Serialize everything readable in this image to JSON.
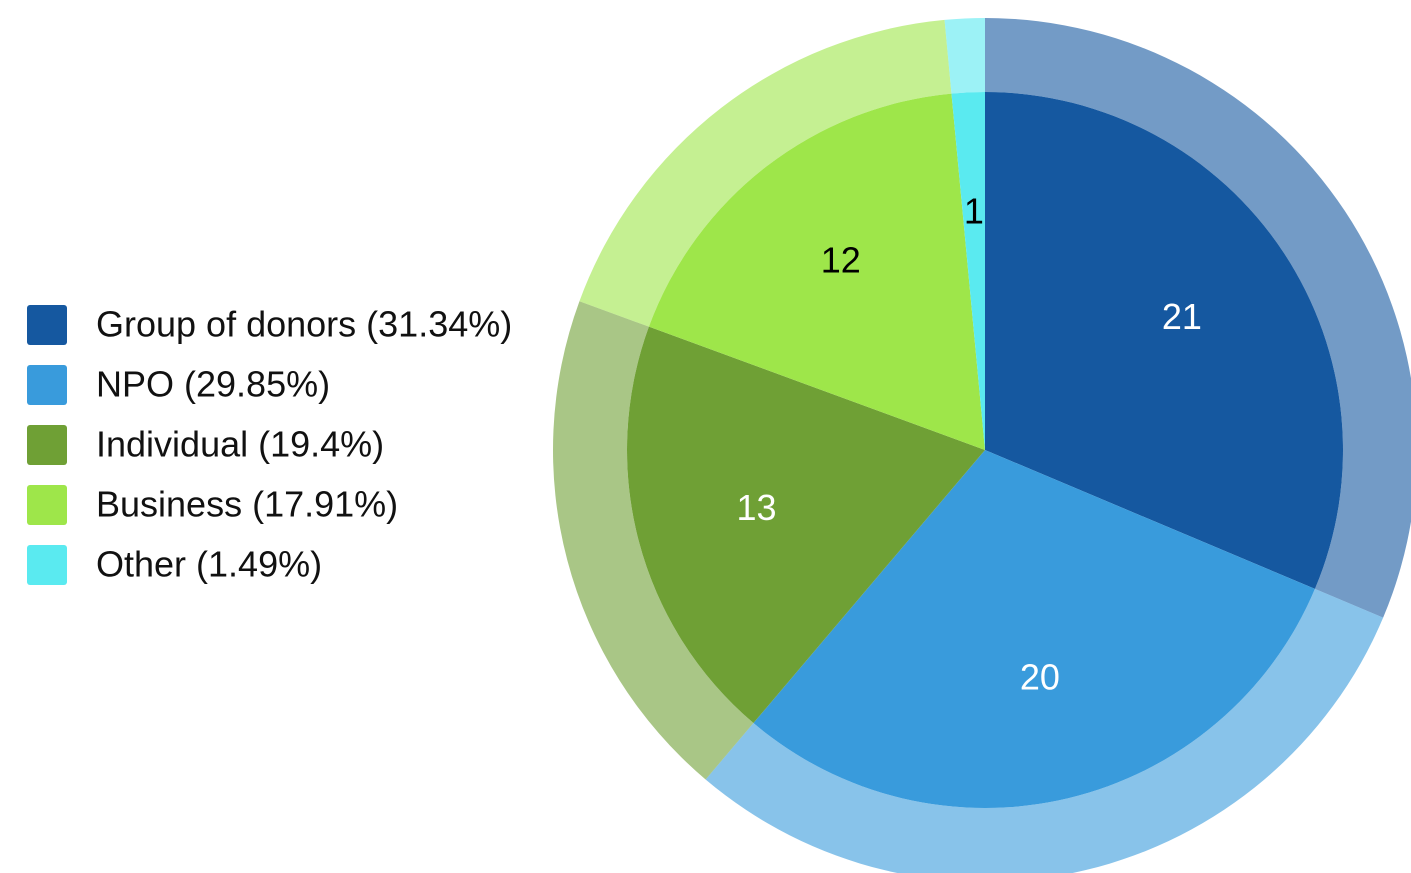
{
  "chart_data": {
    "type": "pie",
    "categories": [
      "Group of donors (31.34%)",
      "NPO (29.85%)",
      "Individual (19.4%)",
      "Business (17.91%)",
      "Other (1.49%)"
    ],
    "values": [
      21,
      20,
      13,
      12,
      1
    ],
    "colors": [
      "#1558a0",
      "#399bdc",
      "#6fa035",
      "#9ee64a",
      "#5aeaf0"
    ],
    "legend": "left"
  }
}
